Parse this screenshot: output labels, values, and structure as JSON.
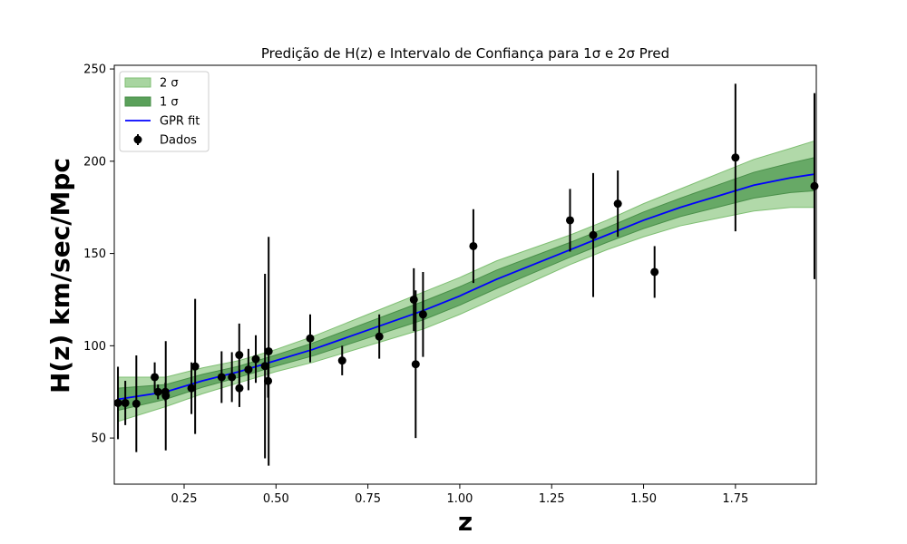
{
  "chart_data": {
    "type": "scatter",
    "title": "Predição de H(z) e  Intervalo de Confiança para 1σ e 2σ Pred",
    "xlabel": "z",
    "ylabel": "H(z)  km/sec/Mpc",
    "xlim": [
      0.06,
      1.97
    ],
    "ylim": [
      25,
      252
    ],
    "xticks": [
      0.25,
      0.5,
      0.75,
      1.0,
      1.25,
      1.5,
      1.75
    ],
    "xtick_labels": [
      "0.25",
      "0.50",
      "0.75",
      "1.00",
      "1.25",
      "1.50",
      "1.75"
    ],
    "yticks": [
      50,
      100,
      150,
      200,
      250
    ],
    "ytick_labels": [
      "50",
      "100",
      "150",
      "200",
      "250"
    ],
    "grid": false,
    "legend_position": "top-left",
    "colors": {
      "fit": "#0000ff",
      "band_1sigma": "#5aa05a",
      "band_2sigma": "#a8d5a0",
      "points": "#000000"
    },
    "legend": [
      {
        "label": "2  σ",
        "kind": "band2"
      },
      {
        "label": "1 σ",
        "kind": "band1"
      },
      {
        "label": "GPR fit",
        "kind": "line"
      },
      {
        "label": "Dados",
        "kind": "errorbar"
      }
    ],
    "fit": {
      "name": "GPR fit",
      "z": [
        0.07,
        0.2,
        0.3,
        0.4,
        0.5,
        0.6,
        0.7,
        0.8,
        0.9,
        1.0,
        1.1,
        1.2,
        1.3,
        1.4,
        1.5,
        1.6,
        1.7,
        1.8,
        1.9,
        1.965
      ],
      "h": [
        71,
        75,
        81,
        86,
        92,
        98,
        105,
        112,
        119,
        127,
        136,
        144,
        152,
        160,
        168,
        175,
        181,
        187,
        191,
        193
      ],
      "sig1": [
        6,
        4,
        3.5,
        3,
        3,
        3.5,
        4,
        4.5,
        5,
        5,
        5,
        4.5,
        4,
        4,
        4.5,
        5,
        6,
        7,
        8,
        9
      ],
      "sig2": [
        12,
        8,
        7,
        6,
        6,
        7,
        8,
        9,
        10,
        10,
        10,
        9,
        8,
        8,
        9,
        10,
        12,
        14,
        16,
        18
      ]
    },
    "points": [
      {
        "z": 0.07,
        "h": 69,
        "err": 19.6
      },
      {
        "z": 0.09,
        "h": 69,
        "err": 12
      },
      {
        "z": 0.12,
        "h": 68.6,
        "err": 26.2
      },
      {
        "z": 0.17,
        "h": 83,
        "err": 8
      },
      {
        "z": 0.179,
        "h": 75,
        "err": 4
      },
      {
        "z": 0.199,
        "h": 75,
        "err": 5
      },
      {
        "z": 0.2,
        "h": 72.9,
        "err": 29.6
      },
      {
        "z": 0.27,
        "h": 77,
        "err": 14
      },
      {
        "z": 0.28,
        "h": 88.8,
        "err": 36.6
      },
      {
        "z": 0.352,
        "h": 83,
        "err": 14
      },
      {
        "z": 0.38,
        "h": 83,
        "err": 13.5
      },
      {
        "z": 0.4,
        "h": 95,
        "err": 17
      },
      {
        "z": 0.4004,
        "h": 77,
        "err": 10.2
      },
      {
        "z": 0.425,
        "h": 87.1,
        "err": 11.2
      },
      {
        "z": 0.445,
        "h": 92.8,
        "err": 12.9
      },
      {
        "z": 0.47,
        "h": 89,
        "err": 50
      },
      {
        "z": 0.4783,
        "h": 80.9,
        "err": 9
      },
      {
        "z": 0.48,
        "h": 97,
        "err": 62
      },
      {
        "z": 0.593,
        "h": 104,
        "err": 13
      },
      {
        "z": 0.68,
        "h": 92,
        "err": 8
      },
      {
        "z": 0.781,
        "h": 105,
        "err": 12
      },
      {
        "z": 0.875,
        "h": 125,
        "err": 17
      },
      {
        "z": 0.88,
        "h": 90,
        "err": 40
      },
      {
        "z": 0.9,
        "h": 117,
        "err": 23
      },
      {
        "z": 1.037,
        "h": 154,
        "err": 20
      },
      {
        "z": 1.3,
        "h": 168,
        "err": 17
      },
      {
        "z": 1.363,
        "h": 160,
        "err": 33.6
      },
      {
        "z": 1.43,
        "h": 177,
        "err": 18
      },
      {
        "z": 1.53,
        "h": 140,
        "err": 14
      },
      {
        "z": 1.75,
        "h": 202,
        "err": 40
      },
      {
        "z": 1.965,
        "h": 186.5,
        "err": 50.4
      }
    ]
  }
}
